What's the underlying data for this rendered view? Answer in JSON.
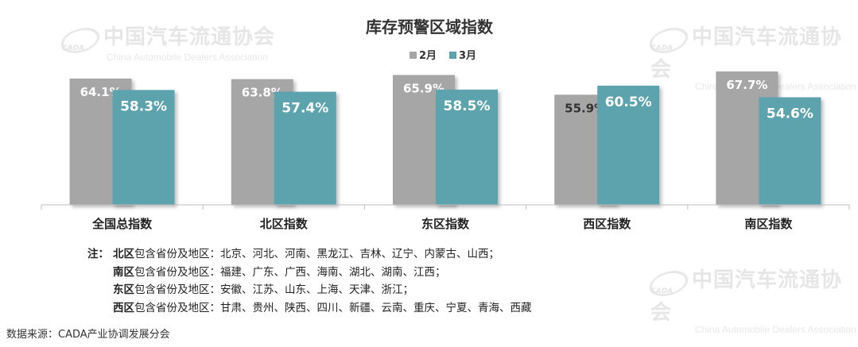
{
  "chart_data": {
    "type": "bar",
    "title": "库存预警区域指数",
    "categories": [
      "全国总指数",
      "北区指数",
      "东区指数",
      "西区指数",
      "南区指数"
    ],
    "series": [
      {
        "name": "2月",
        "color": "#a6a6a6",
        "values": [
          64.1,
          63.8,
          65.9,
          55.9,
          67.7
        ]
      },
      {
        "name": "3月",
        "color": "#5ba3ae",
        "values": [
          58.3,
          57.4,
          58.5,
          60.5,
          54.6
        ]
      }
    ],
    "value_suffix": "%",
    "legend_position": "top-center",
    "grid": false
  },
  "watermark": {
    "org_cn": "中国汽车流通协会",
    "org_en": "China Automobile Dealers Association",
    "logo_text": "CADA"
  },
  "notes": {
    "prefix": "注：",
    "region_label_suffix": "包含省份及地区：",
    "items": [
      {
        "region": "北区",
        "provinces": "北京、河北、河南、黑龙江、吉林、辽宁、内蒙古、山西；"
      },
      {
        "region": "南区",
        "provinces": "福建、广东、广西、海南、湖北、湖南、江西；"
      },
      {
        "region": "东区",
        "provinces": "安徽、江苏、山东、上海、天津、浙江；"
      },
      {
        "region": "西区",
        "provinces": "甘肃、贵州、陕西、四川、新疆、云南、重庆、宁夏、青海、西藏"
      }
    ]
  },
  "source": "数据来源：CADA产业协调发展分会"
}
